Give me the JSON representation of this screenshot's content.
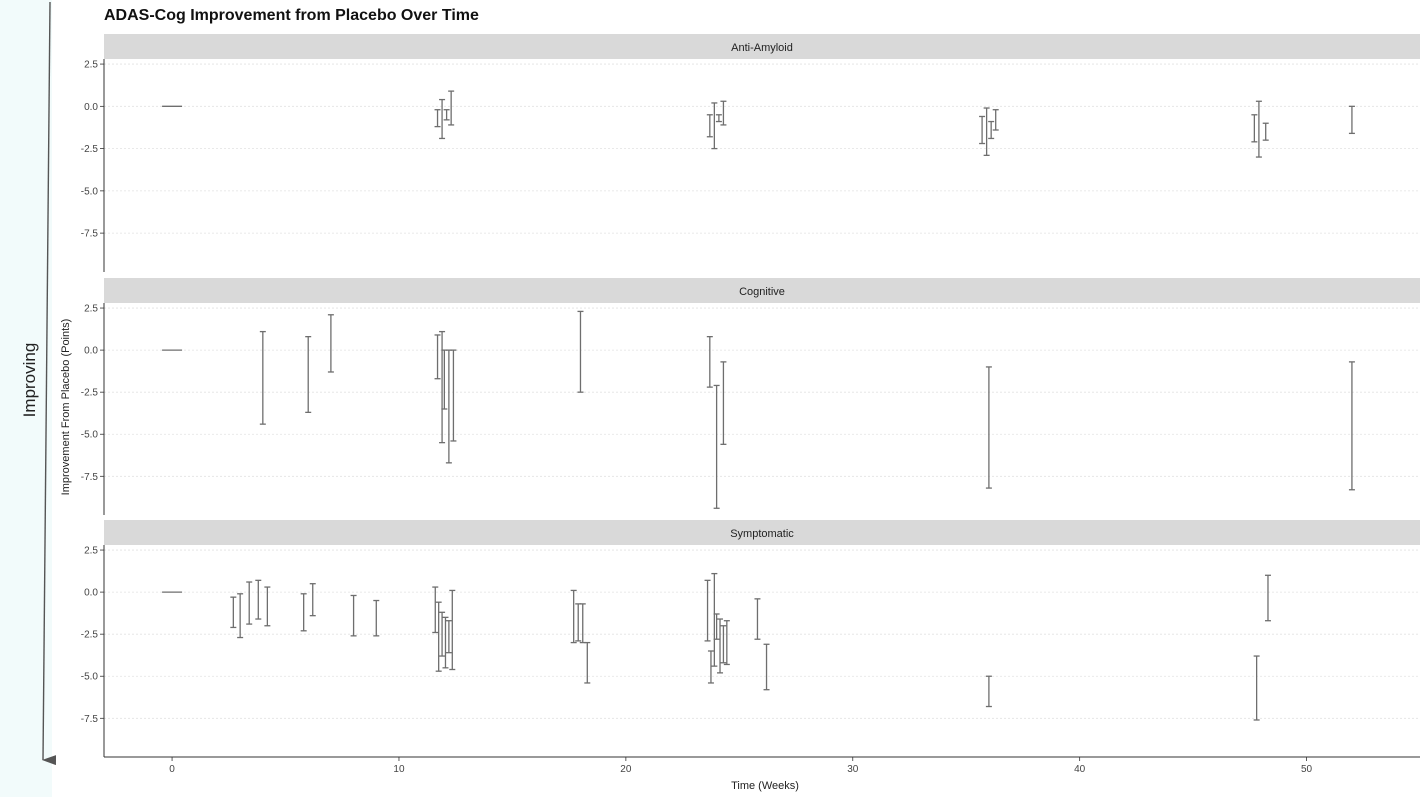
{
  "side_label": "Improving",
  "colors": {
    "side_panel": "#f2fbfb",
    "strip": "#d9d9d9",
    "errorbar": "#6e6e6e",
    "gridline": "#e2e2e2",
    "axis": "#333333"
  },
  "chart_data": {
    "type": "errorbar",
    "title": "ADAS-Cog Improvement from Placebo Over Time",
    "xlabel": "Time (Weeks)",
    "ylabel": "Improvement From Placebo (Points)",
    "xlim": [
      -3,
      55
    ],
    "ylim": [
      -9.8,
      2.8
    ],
    "x_ticks": [
      0,
      10,
      20,
      30,
      40,
      50
    ],
    "x_tick_labels": [
      "0",
      "10",
      "20",
      "30",
      "40",
      "50"
    ],
    "y_ticks": [
      2.5,
      0,
      -2.5,
      -5,
      -7.5
    ],
    "y_tick_labels": [
      "2.5",
      "0.0",
      "-2.5",
      "-5.0",
      "-7.5"
    ],
    "grid": true,
    "facets": [
      {
        "label": "Anti-Amyloid",
        "intervals": [
          {
            "x": 0,
            "low": 0,
            "high": 0
          },
          {
            "x": 11.7,
            "low": -1.2,
            "high": -0.2
          },
          {
            "x": 11.9,
            "low": -1.9,
            "high": 0.4
          },
          {
            "x": 12.1,
            "low": -0.8,
            "high": -0.2
          },
          {
            "x": 12.3,
            "low": -1.1,
            "high": 0.9
          },
          {
            "x": 23.7,
            "low": -1.8,
            "high": -0.5
          },
          {
            "x": 23.9,
            "low": -2.5,
            "high": 0.2
          },
          {
            "x": 24.1,
            "low": -0.9,
            "high": -0.5
          },
          {
            "x": 24.3,
            "low": -1.1,
            "high": 0.3
          },
          {
            "x": 35.7,
            "low": -2.2,
            "high": -0.6
          },
          {
            "x": 35.9,
            "low": -2.9,
            "high": -0.1
          },
          {
            "x": 36.1,
            "low": -1.9,
            "high": -0.9
          },
          {
            "x": 36.3,
            "low": -1.4,
            "high": -0.2
          },
          {
            "x": 47.7,
            "low": -2.1,
            "high": -0.5
          },
          {
            "x": 47.9,
            "low": -3.0,
            "high": 0.3
          },
          {
            "x": 48.2,
            "low": -2.0,
            "high": -1.0
          },
          {
            "x": 52,
            "low": -1.6,
            "high": 0.0
          }
        ]
      },
      {
        "label": "Cognitive",
        "intervals": [
          {
            "x": 0,
            "low": 0,
            "high": 0
          },
          {
            "x": 4,
            "low": -4.4,
            "high": 1.1
          },
          {
            "x": 6,
            "low": -3.7,
            "high": 0.8
          },
          {
            "x": 7,
            "low": -1.3,
            "high": 2.1
          },
          {
            "x": 11.7,
            "low": -1.7,
            "high": 0.9
          },
          {
            "x": 11.9,
            "low": -5.5,
            "high": 1.1
          },
          {
            "x": 12.0,
            "low": -3.5,
            "high": 0.0
          },
          {
            "x": 12.2,
            "low": -6.7,
            "high": 0.0
          },
          {
            "x": 12.4,
            "low": -5.4,
            "high": 0.0
          },
          {
            "x": 18,
            "low": -2.5,
            "high": 2.3
          },
          {
            "x": 23.7,
            "low": -2.2,
            "high": 0.8
          },
          {
            "x": 24.0,
            "low": -9.4,
            "high": -2.1
          },
          {
            "x": 24.3,
            "low": -5.6,
            "high": -0.7
          },
          {
            "x": 36,
            "low": -8.2,
            "high": -1.0
          },
          {
            "x": 52,
            "low": -8.3,
            "high": -0.7
          }
        ]
      },
      {
        "label": "Symptomatic",
        "intervals": [
          {
            "x": 0,
            "low": 0,
            "high": 0
          },
          {
            "x": 2.7,
            "low": -2.1,
            "high": -0.3
          },
          {
            "x": 3.0,
            "low": -2.7,
            "high": -0.1
          },
          {
            "x": 3.4,
            "low": -1.9,
            "high": 0.6
          },
          {
            "x": 3.8,
            "low": -1.6,
            "high": 0.7
          },
          {
            "x": 4.2,
            "low": -2.0,
            "high": 0.3
          },
          {
            "x": 5.8,
            "low": -2.3,
            "high": -0.1
          },
          {
            "x": 6.2,
            "low": -1.4,
            "high": 0.5
          },
          {
            "x": 8.0,
            "low": -2.6,
            "high": -0.2
          },
          {
            "x": 9.0,
            "low": -2.6,
            "high": -0.5
          },
          {
            "x": 11.6,
            "low": -2.4,
            "high": 0.3
          },
          {
            "x": 11.75,
            "low": -4.7,
            "high": -0.6
          },
          {
            "x": 11.9,
            "low": -3.8,
            "high": -1.2
          },
          {
            "x": 12.05,
            "low": -4.5,
            "high": -1.5
          },
          {
            "x": 12.2,
            "low": -3.6,
            "high": -1.7
          },
          {
            "x": 12.35,
            "low": -4.6,
            "high": 0.1
          },
          {
            "x": 17.7,
            "low": -3.0,
            "high": 0.1
          },
          {
            "x": 17.9,
            "low": -2.9,
            "high": -0.7
          },
          {
            "x": 18.1,
            "low": -3.0,
            "high": -0.7
          },
          {
            "x": 18.3,
            "low": -5.4,
            "high": -3.0
          },
          {
            "x": 23.6,
            "low": -2.9,
            "high": 0.7
          },
          {
            "x": 23.75,
            "low": -5.4,
            "high": -3.5
          },
          {
            "x": 23.9,
            "low": -4.4,
            "high": 1.1
          },
          {
            "x": 24.0,
            "low": -2.8,
            "high": -1.3
          },
          {
            "x": 24.15,
            "low": -4.8,
            "high": -1.6
          },
          {
            "x": 24.3,
            "low": -4.2,
            "high": -2.0
          },
          {
            "x": 24.45,
            "low": -4.3,
            "high": -1.7
          },
          {
            "x": 25.8,
            "low": -2.8,
            "high": -0.4
          },
          {
            "x": 26.2,
            "low": -5.8,
            "high": -3.1
          },
          {
            "x": 36,
            "low": -6.8,
            "high": -5.0
          },
          {
            "x": 47.8,
            "low": -7.6,
            "high": -3.8
          },
          {
            "x": 48.3,
            "low": -1.7,
            "high": 1.0
          }
        ]
      }
    ]
  }
}
